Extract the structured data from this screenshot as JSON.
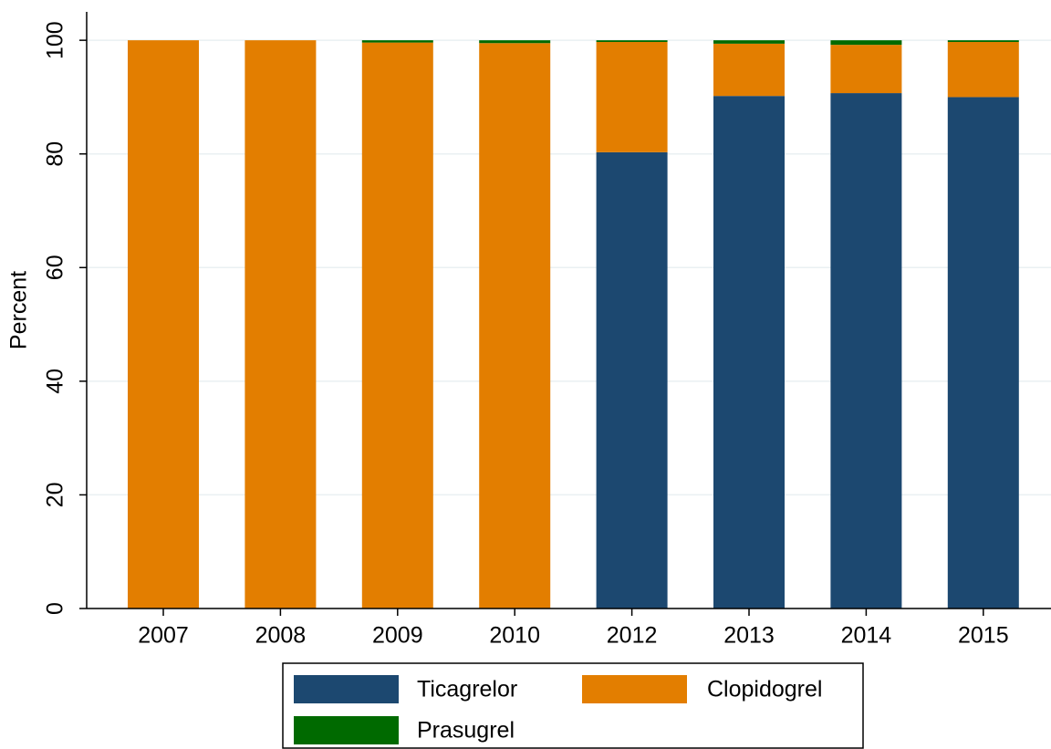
{
  "chart_data": {
    "type": "stacked_bar",
    "y_label": "Percent",
    "categories": [
      "2007",
      "2008",
      "2009",
      "2010",
      "2012",
      "2013",
      "2014",
      "2015"
    ],
    "series": [
      {
        "name": "Ticagrelor",
        "color": "#1c4870",
        "values": [
          0,
          0,
          0,
          0,
          80.3,
          90.2,
          90.7,
          90.0
        ]
      },
      {
        "name": "Clopidogrel",
        "color": "#e37e00",
        "values": [
          100,
          100,
          99.6,
          99.5,
          19.4,
          9.2,
          8.5,
          9.7
        ]
      },
      {
        "name": "Prasugrel",
        "color": "#006a00",
        "values": [
          0,
          0,
          0.4,
          0.5,
          0.3,
          0.6,
          0.8,
          0.3
        ]
      }
    ],
    "ylim": [
      0,
      105
    ],
    "yticks": [
      0,
      20,
      40,
      60,
      80,
      100
    ],
    "grid": true
  }
}
